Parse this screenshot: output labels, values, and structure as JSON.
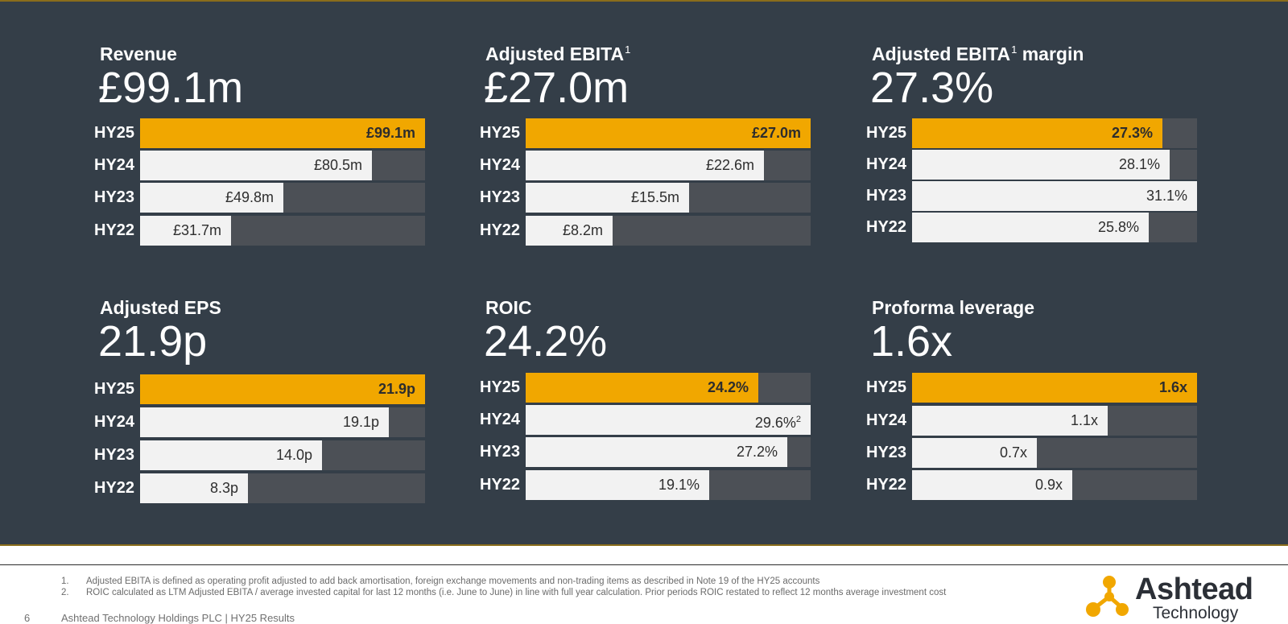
{
  "kpis": [
    {
      "id": "revenue",
      "title": "Revenue",
      "title_sup": "",
      "title_suffix": "",
      "headline": "£99.1m",
      "bars": [
        {
          "period": "HY25",
          "label": "£99.1m",
          "value": 99.1,
          "max": 99.1,
          "current": true
        },
        {
          "period": "HY24",
          "label": "£80.5m",
          "value": 80.5,
          "max": 99.1,
          "current": false
        },
        {
          "period": "HY23",
          "label": "£49.8m",
          "value": 49.8,
          "max": 99.1,
          "current": false
        },
        {
          "period": "HY22",
          "label": "£31.7m",
          "value": 31.7,
          "max": 99.1,
          "current": false
        }
      ]
    },
    {
      "id": "adjusted-ebita",
      "title": "Adjusted EBITA",
      "title_sup": "1",
      "title_suffix": "",
      "headline": "£27.0m",
      "bars": [
        {
          "period": "HY25",
          "label": "£27.0m",
          "value": 27.0,
          "max": 27.0,
          "current": true
        },
        {
          "period": "HY24",
          "label": "£22.6m",
          "value": 22.6,
          "max": 27.0,
          "current": false
        },
        {
          "period": "HY23",
          "label": "£15.5m",
          "value": 15.5,
          "max": 27.0,
          "current": false
        },
        {
          "period": "HY22",
          "label": "£8.2m",
          "value": 8.2,
          "max": 27.0,
          "current": false
        }
      ]
    },
    {
      "id": "adjusted-ebita-margin",
      "title": "Adjusted EBITA",
      "title_sup": "1",
      "title_suffix": " margin",
      "headline": "27.3%",
      "bars": [
        {
          "period": "HY25",
          "label": "27.3%",
          "value": 27.3,
          "max": 31.1,
          "current": true
        },
        {
          "period": "HY24",
          "label": "28.1%",
          "value": 28.1,
          "max": 31.1,
          "current": false
        },
        {
          "period": "HY23",
          "label": "31.1%",
          "value": 31.1,
          "max": 31.1,
          "current": false
        },
        {
          "period": "HY22",
          "label": "25.8%",
          "value": 25.8,
          "max": 31.1,
          "current": false
        }
      ]
    },
    {
      "id": "adjusted-eps",
      "title": "Adjusted EPS",
      "title_sup": "",
      "title_suffix": "",
      "headline": "21.9p",
      "bars": [
        {
          "period": "HY25",
          "label": "21.9p",
          "value": 21.9,
          "max": 21.9,
          "current": true
        },
        {
          "period": "HY24",
          "label": "19.1p",
          "value": 19.1,
          "max": 21.9,
          "current": false
        },
        {
          "period": "HY23",
          "label": "14.0p",
          "value": 14.0,
          "max": 21.9,
          "current": false
        },
        {
          "period": "HY22",
          "label": "8.3p",
          "value": 8.3,
          "max": 21.9,
          "current": false
        }
      ]
    },
    {
      "id": "roic",
      "title": "ROIC",
      "title_sup": "",
      "title_suffix": "",
      "headline": "24.2%",
      "bars": [
        {
          "period": "HY25",
          "label": "24.2%",
          "value": 24.2,
          "max": 29.6,
          "current": true
        },
        {
          "period": "HY24",
          "label": "29.6%",
          "label_sup": "2",
          "value": 29.6,
          "max": 29.6,
          "current": false
        },
        {
          "period": "HY23",
          "label": "27.2%",
          "value": 27.2,
          "max": 29.6,
          "current": false
        },
        {
          "period": "HY22",
          "label": "19.1%",
          "value": 19.1,
          "max": 29.6,
          "current": false
        }
      ]
    },
    {
      "id": "proforma-leverage",
      "title": "Proforma leverage",
      "title_sup": "",
      "title_suffix": "",
      "headline": "1.6x",
      "bars": [
        {
          "period": "HY25",
          "label": "1.6x",
          "value": 1.6,
          "max": 1.6,
          "current": true
        },
        {
          "period": "HY24",
          "label": "1.1x",
          "value": 1.1,
          "max": 1.6,
          "current": false
        },
        {
          "period": "HY23",
          "label": "0.7x",
          "value": 0.7,
          "max": 1.6,
          "current": false
        },
        {
          "period": "HY22",
          "label": "0.9x",
          "value": 0.9,
          "max": 1.6,
          "current": false
        }
      ]
    }
  ],
  "footnotes": [
    {
      "num": "1.",
      "text": "Adjusted EBITA is defined as operating profit adjusted to add back amortisation, foreign exchange movements and non-trading items as described in Note 19 of the HY25 accounts"
    },
    {
      "num": "2.",
      "text": "ROIC calculated as LTM Adjusted EBITA / average invested capital for last 12 months (i.e. June to June) in line with full year calculation. Prior periods ROIC restated to reflect 12 months average investment cost"
    }
  ],
  "footer": {
    "page_number": "6",
    "text": "Ashtead Technology Holdings PLC | HY25 Results"
  },
  "logo": {
    "name": "Ashtead",
    "subtitle": "Technology"
  },
  "colors": {
    "panel_bg": "#343e48",
    "highlight": "#f1a700",
    "bar_track": "#4c5056",
    "bar_fill": "#f2f2f2"
  }
}
